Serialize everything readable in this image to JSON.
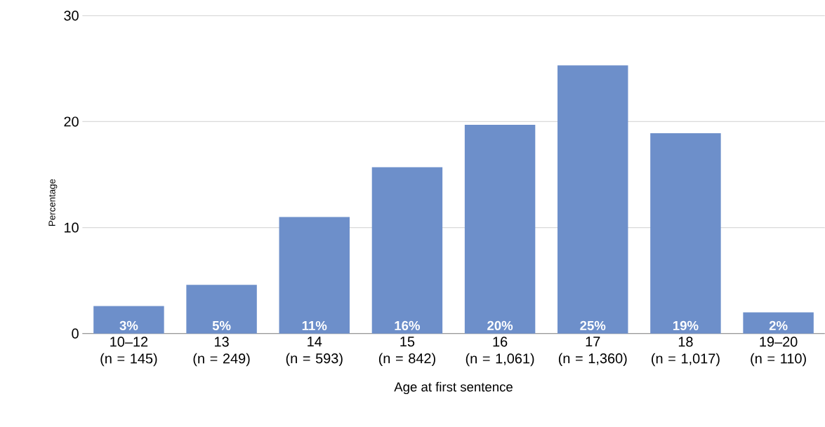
{
  "chart_data": {
    "type": "bar",
    "categories": [
      "10–12\n(n = 145)",
      "13\n(n = 249)",
      "14\n(n = 593)",
      "15\n(n = 842)",
      "16\n(n = 1,061)",
      "17\n(n = 1,360)",
      "18\n(n = 1,017)",
      "19–20\n(n = 110)"
    ],
    "values": [
      2.6,
      4.6,
      11.0,
      15.7,
      19.7,
      25.3,
      18.9,
      2.0
    ],
    "value_labels": [
      "3%",
      "5%",
      "11%",
      "16%",
      "20%",
      "25%",
      "19%",
      "2%"
    ],
    "color": "#6d8fca",
    "xlabel": "Age at first sentence",
    "ylabel": "Percentage",
    "ylim": [
      0,
      30
    ],
    "yticks": [
      0,
      10,
      20,
      30
    ],
    "grid": "y"
  }
}
